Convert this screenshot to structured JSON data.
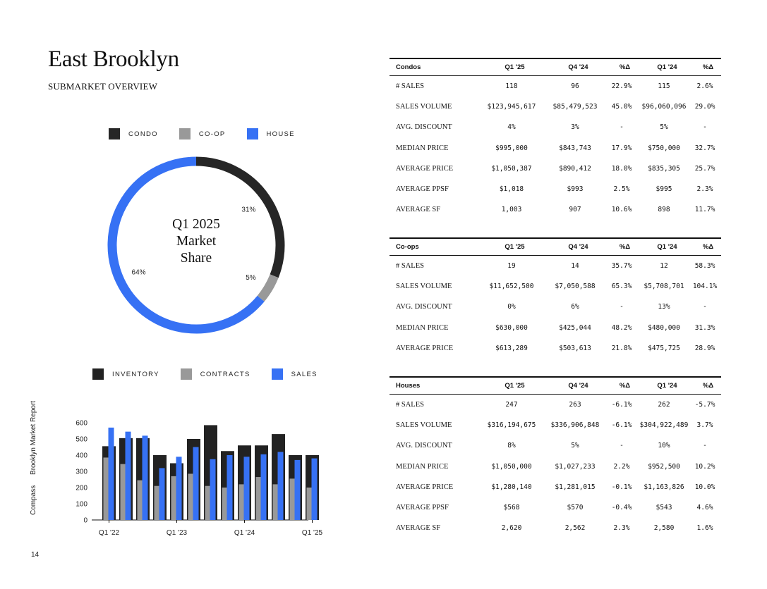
{
  "page": {
    "title": "East Brooklyn",
    "subtitle": "SUBMARKET OVERVIEW",
    "page_number": "14",
    "side_brand": "Compass",
    "side_report": "Brooklyn Market Report"
  },
  "colors": {
    "condo": "#262626",
    "coop": "#999999",
    "house": "#3671f4",
    "inventory": "#222222",
    "contracts": "#999999",
    "sales": "#3671f4"
  },
  "market_share": {
    "center_lines": [
      "Q1 2025",
      "Market",
      "Share"
    ],
    "legend": [
      {
        "label": "CONDO",
        "color": "#262626"
      },
      {
        "label": "CO-OP",
        "color": "#999999"
      },
      {
        "label": "HOUSE",
        "color": "#3671f4"
      }
    ],
    "slices": [
      {
        "label": "CONDO",
        "value": 31,
        "text": "31%",
        "color": "#262626"
      },
      {
        "label": "CO-OP",
        "value": 5,
        "text": "5%",
        "color": "#999999"
      },
      {
        "label": "HOUSE",
        "value": 64,
        "text": "64%",
        "color": "#3671f4"
      }
    ]
  },
  "chart_data": [
    {
      "type": "pie",
      "title": "Q1 2025 Market Share",
      "categories": [
        "CONDO",
        "CO-OP",
        "HOUSE"
      ],
      "values": [
        31,
        5,
        64
      ],
      "legend": "top"
    },
    {
      "type": "bar",
      "categories": [
        "Q1 '22",
        "Q2 '22",
        "Q3 '22",
        "Q4 '22",
        "Q1 '23",
        "Q2 '23",
        "Q3 '23",
        "Q4 '23",
        "Q1 '24",
        "Q2 '24",
        "Q3 '24",
        "Q4 '24",
        "Q1 '25"
      ],
      "tick_labels": [
        "Q1 '22",
        "Q1 '23",
        "Q1 '24",
        "Q1 '25"
      ],
      "series": [
        {
          "name": "INVENTORY",
          "values": [
            455,
            505,
            505,
            400,
            350,
            500,
            585,
            425,
            460,
            460,
            530,
            400,
            400
          ]
        },
        {
          "name": "CONTRACTS",
          "values": [
            385,
            345,
            245,
            210,
            270,
            285,
            210,
            200,
            220,
            265,
            220,
            255,
            200
          ]
        },
        {
          "name": "SALES",
          "values": [
            570,
            545,
            520,
            320,
            390,
            450,
            375,
            400,
            390,
            405,
            420,
            370,
            380
          ]
        }
      ],
      "yticks": [
        0,
        100,
        200,
        300,
        400,
        500,
        600
      ],
      "ylim": [
        0,
        630
      ],
      "legend": "top",
      "grid": false
    }
  ],
  "tables": [
    {
      "id": "condos",
      "headers": [
        "Condos",
        "Q1 '25",
        "Q4 '24",
        "%Δ",
        "Q1 '24",
        "%Δ"
      ],
      "rows": [
        [
          "# SALES",
          "118",
          "96",
          "22.9%",
          "115",
          "2.6%"
        ],
        [
          "SALES VOLUME",
          "$123,945,617",
          "$85,479,523",
          "45.0%",
          "$96,060,096",
          "29.0%"
        ],
        [
          "AVG. DISCOUNT",
          "4%",
          "3%",
          "-",
          "5%",
          "-"
        ],
        [
          "MEDIAN PRICE",
          "$995,000",
          "$843,743",
          "17.9%",
          "$750,000",
          "32.7%"
        ],
        [
          "AVERAGE PRICE",
          "$1,050,387",
          "$890,412",
          "18.0%",
          "$835,305",
          "25.7%"
        ],
        [
          "AVERAGE PPSF",
          "$1,018",
          "$993",
          "2.5%",
          "$995",
          "2.3%"
        ],
        [
          "AVERAGE SF",
          "1,003",
          "907",
          "10.6%",
          "898",
          "11.7%"
        ]
      ]
    },
    {
      "id": "coops",
      "headers": [
        "Co-ops",
        "Q1 '25",
        "Q4 '24",
        "%Δ",
        "Q1 '24",
        "%Δ"
      ],
      "rows": [
        [
          "# SALES",
          "19",
          "14",
          "35.7%",
          "12",
          "58.3%"
        ],
        [
          "SALES VOLUME",
          "$11,652,500",
          "$7,050,588",
          "65.3%",
          "$5,708,701",
          "104.1%"
        ],
        [
          "AVG. DISCOUNT",
          "0%",
          "6%",
          "-",
          "13%",
          "-"
        ],
        [
          "MEDIAN PRICE",
          "$630,000",
          "$425,044",
          "48.2%",
          "$480,000",
          "31.3%"
        ],
        [
          "AVERAGE PRICE",
          "$613,289",
          "$503,613",
          "21.8%",
          "$475,725",
          "28.9%"
        ]
      ]
    },
    {
      "id": "houses",
      "headers": [
        "Houses",
        "Q1 '25",
        "Q4 '24",
        "%Δ",
        "Q1 '24",
        "%Δ"
      ],
      "rows": [
        [
          "# SALES",
          "247",
          "263",
          "-6.1%",
          "262",
          "-5.7%"
        ],
        [
          "SALES VOLUME",
          "$316,194,675",
          "$336,906,848",
          "-6.1%",
          "$304,922,489",
          "3.7%"
        ],
        [
          "AVG. DISCOUNT",
          "8%",
          "5%",
          "-",
          "10%",
          "-"
        ],
        [
          "MEDIAN PRICE",
          "$1,050,000",
          "$1,027,233",
          "2.2%",
          "$952,500",
          "10.2%"
        ],
        [
          "AVERAGE PRICE",
          "$1,280,140",
          "$1,281,015",
          "-0.1%",
          "$1,163,826",
          "10.0%"
        ],
        [
          "AVERAGE PPSF",
          "$568",
          "$570",
          "-0.4%",
          "$543",
          "4.6%"
        ],
        [
          "AVERAGE SF",
          "2,620",
          "2,562",
          "2.3%",
          "2,580",
          "1.6%"
        ]
      ]
    }
  ]
}
